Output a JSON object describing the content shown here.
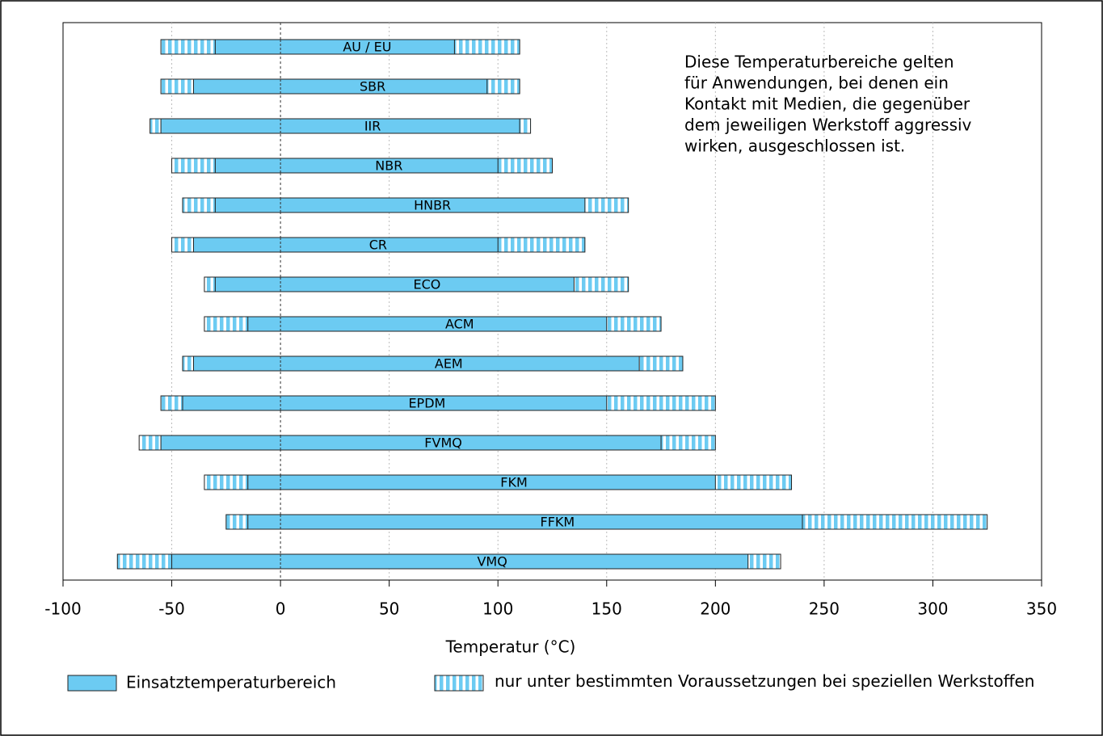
{
  "chart_data": {
    "type": "range-bar",
    "categories": [
      "AU / EU",
      "SBR",
      "IIR",
      "NBR",
      "HNBR",
      "CR",
      "ECO",
      "ACM",
      "AEM",
      "EPDM",
      "FVMQ",
      "FKM",
      "FFKM",
      "VMQ"
    ],
    "series": [
      {
        "name": "Einsatztemperaturbereich",
        "color": "#6ccbf2",
        "low": [
          -30,
          -40,
          -55,
          -30,
          -30,
          -40,
          -30,
          -15,
          -40,
          -45,
          -55,
          -15,
          -15,
          -50
        ],
        "high": [
          80,
          95,
          110,
          100,
          140,
          100,
          135,
          150,
          165,
          150,
          175,
          200,
          240,
          215
        ]
      },
      {
        "name": "nur unter bestimmten Voraussetzungen bei speziellen Werkstoffen",
        "color": "#6ccbf2",
        "low": [
          -55,
          -55,
          -60,
          -50,
          -45,
          -50,
          -35,
          -35,
          -45,
          -55,
          -65,
          -35,
          -25,
          -75
        ],
        "high": [
          110,
          110,
          115,
          125,
          160,
          140,
          160,
          175,
          185,
          200,
          200,
          235,
          325,
          230
        ]
      }
    ],
    "x_label": "Temperatur (°C)",
    "annotation": [
      "Diese Temperaturbereiche gelten",
      "für Anwendungen, bei denen ein",
      "Kontakt mit Medien, die gegenüber",
      "dem jeweiligen Werkstoff aggressiv",
      "wirken, ausgeschlossen ist."
    ],
    "xlim": [
      -100,
      350
    ],
    "xticks": [
      -100,
      -50,
      0,
      50,
      100,
      150,
      200,
      250,
      300,
      350
    ],
    "grid": true
  }
}
